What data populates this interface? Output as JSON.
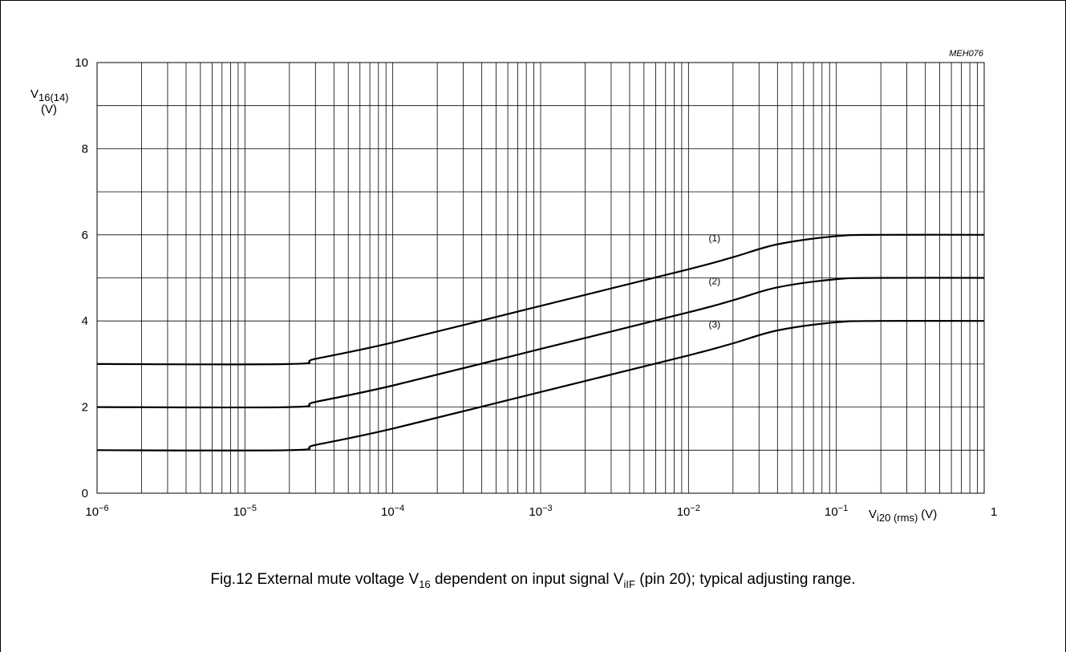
{
  "chart_data": {
    "type": "line",
    "figure_code": "MEH076",
    "ylabel": {
      "main": "V",
      "sub": "16(14)",
      "unit": "(V)"
    },
    "xlabel": {
      "main": "V",
      "sub": "i20 (rms)",
      "unit": "(V)"
    },
    "x_scale": "log",
    "xlim": [
      1e-06,
      1
    ],
    "ylim": [
      0,
      10
    ],
    "grid": true,
    "y_ticks": [
      "0",
      "2",
      "4",
      "6",
      "8",
      "10"
    ],
    "x_ticks": [
      {
        "base": "10",
        "exp": "−6"
      },
      {
        "base": "10",
        "exp": "−5"
      },
      {
        "base": "10",
        "exp": "−4"
      },
      {
        "base": "10",
        "exp": "−3"
      },
      {
        "base": "10",
        "exp": "−2"
      },
      {
        "base": "10",
        "exp": "−1"
      },
      {
        "base": "1",
        "exp": ""
      }
    ],
    "series": [
      {
        "label": "(1)",
        "points": [
          [
            1e-06,
            3
          ],
          [
            2e-05,
            3
          ],
          [
            3e-05,
            3.12
          ],
          [
            0.0001,
            3.5
          ],
          [
            0.001,
            4.35
          ],
          [
            0.01,
            5.2
          ],
          [
            0.02,
            5.48
          ],
          [
            0.04,
            5.78
          ],
          [
            0.1,
            5.97
          ],
          [
            0.2,
            6
          ],
          [
            1,
            6
          ]
        ]
      },
      {
        "label": "(2)",
        "points": [
          [
            1e-06,
            2
          ],
          [
            2e-05,
            2
          ],
          [
            3e-05,
            2.12
          ],
          [
            0.0001,
            2.5
          ],
          [
            0.001,
            3.35
          ],
          [
            0.01,
            4.2
          ],
          [
            0.02,
            4.48
          ],
          [
            0.04,
            4.78
          ],
          [
            0.1,
            4.97
          ],
          [
            0.2,
            5
          ],
          [
            1,
            5
          ]
        ]
      },
      {
        "label": "(3)",
        "points": [
          [
            1e-06,
            1
          ],
          [
            2e-05,
            1
          ],
          [
            3e-05,
            1.12
          ],
          [
            0.0001,
            1.5
          ],
          [
            0.001,
            2.35
          ],
          [
            0.01,
            3.2
          ],
          [
            0.02,
            3.48
          ],
          [
            0.04,
            3.78
          ],
          [
            0.1,
            3.97
          ],
          [
            0.2,
            4
          ],
          [
            1,
            4
          ]
        ]
      }
    ]
  },
  "caption": {
    "prefix": "Fig.12  External mute voltage V",
    "sub1": "16",
    "middle": " dependent on input signal V",
    "sub2": "iIF",
    "suffix": " (pin 20); typical adjusting range."
  }
}
